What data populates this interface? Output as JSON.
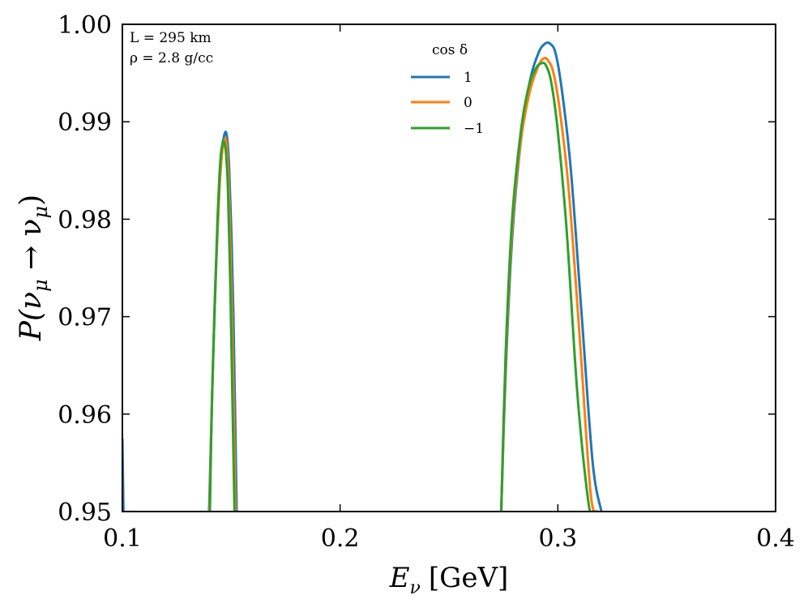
{
  "chart_data": {
    "type": "line",
    "xlabel_main": "E",
    "xlabel_sub": "ν",
    "xlabel_unit": "[GeV]",
    "ylabel": "P(ν_μ → ν_μ)",
    "ylabel_parts": {
      "prefix": "P(ν",
      "sub1": "μ",
      "arrow": " → ν",
      "sub2": "μ",
      "suffix": ")"
    },
    "xlim": [
      0.1,
      0.4
    ],
    "ylim": [
      0.95,
      1.0
    ],
    "xticks": [
      0.1,
      0.2,
      0.3,
      0.4
    ],
    "xtick_labels": [
      "0.1",
      "0.2",
      "0.3",
      "0.4"
    ],
    "yticks": [
      0.95,
      0.96,
      0.97,
      0.98,
      0.99,
      1.0
    ],
    "ytick_labels": [
      "0.95",
      "0.96",
      "0.97",
      "0.98",
      "0.99",
      "1.00"
    ],
    "annotations": [
      "L = 295 km",
      "ρ = 2.8 g/cc"
    ],
    "legend_title": "cos δ",
    "legend_position": "top-center",
    "series": [
      {
        "name": "1",
        "color": "#1f77b4",
        "peaks": [
          {
            "x": [
              0.1398,
              0.141,
              0.142,
              0.1432,
              0.1445,
              0.1458,
              0.147,
              0.148,
              0.149,
              0.15,
              0.151,
              0.1525
            ],
            "y": [
              0.95,
              0.96,
              0.968,
              0.976,
              0.983,
              0.987,
              0.9888,
              0.9885,
              0.9855,
              0.979,
              0.97,
              0.95
            ]
          },
          {
            "x": [
              0.274,
              0.276,
              0.279,
              0.283,
              0.287,
              0.291,
              0.294,
              0.2965,
              0.299,
              0.302,
              0.306,
              0.311,
              0.316,
              0.32
            ],
            "y": [
              0.95,
              0.964,
              0.978,
              0.988,
              0.994,
              0.997,
              0.998,
              0.998,
              0.997,
              0.993,
              0.985,
              0.97,
              0.955,
              0.95
            ]
          }
        ],
        "edge": {
          "x": [
            0.1,
            0.1005
          ],
          "y": [
            0.9575,
            0.95
          ]
        }
      },
      {
        "name": "0",
        "color": "#ff7f0e",
        "peaks": [
          {
            "x": [
              0.14,
              0.141,
              0.1422,
              0.1435,
              0.1448,
              0.146,
              0.147,
              0.1478,
              0.1488,
              0.1498,
              0.1508,
              0.152
            ],
            "y": [
              0.95,
              0.96,
              0.97,
              0.978,
              0.984,
              0.9872,
              0.9882,
              0.9878,
              0.984,
              0.976,
              0.965,
              0.95
            ]
          },
          {
            "x": [
              0.274,
              0.276,
              0.279,
              0.283,
              0.287,
              0.291,
              0.2935,
              0.2955,
              0.298,
              0.301,
              0.305,
              0.31,
              0.315,
              0.318
            ],
            "y": [
              0.95,
              0.965,
              0.979,
              0.988,
              0.993,
              0.9957,
              0.9965,
              0.9963,
              0.995,
              0.991,
              0.983,
              0.968,
              0.952,
              0.95
            ]
          }
        ]
      },
      {
        "name": "−1",
        "color": "#2ca02c",
        "peaks": [
          {
            "x": [
              0.1402,
              0.1412,
              0.1425,
              0.1437,
              0.145,
              0.146,
              0.1465,
              0.1475,
              0.1485,
              0.1495,
              0.1505,
              0.1515
            ],
            "y": [
              0.95,
              0.962,
              0.972,
              0.98,
              0.986,
              0.9878,
              0.988,
              0.987,
              0.983,
              0.974,
              0.962,
              0.95
            ]
          },
          {
            "x": [
              0.274,
              0.276,
              0.279,
              0.283,
              0.2865,
              0.29,
              0.2925,
              0.2945,
              0.297,
              0.3,
              0.304,
              0.309,
              0.314,
              0.316
            ],
            "y": [
              0.95,
              0.966,
              0.98,
              0.989,
              0.9935,
              0.9955,
              0.996,
              0.9958,
              0.994,
              0.989,
              0.979,
              0.962,
              0.951,
              0.95
            ]
          }
        ]
      }
    ]
  }
}
